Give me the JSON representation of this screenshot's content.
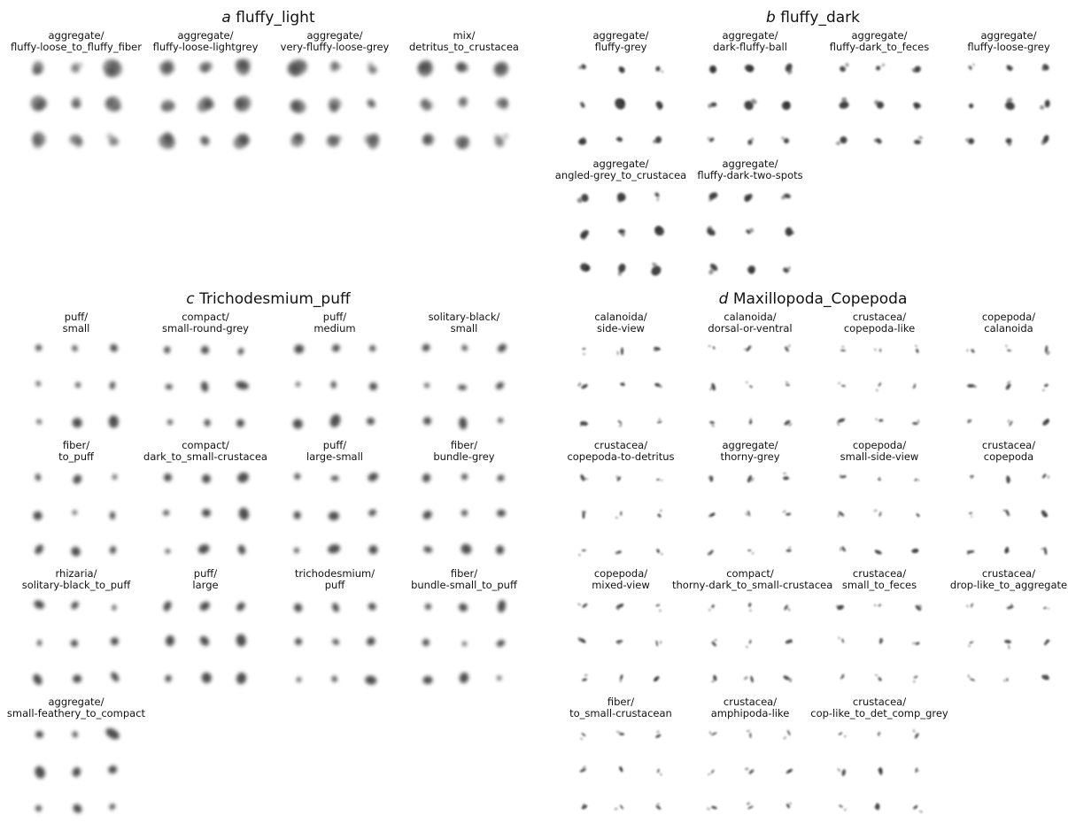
{
  "panels": [
    {
      "letter": "a",
      "name": "fluffy_light",
      "style": "fluffy_light",
      "cells": [
        {
          "group": "aggregate/",
          "type": "fluffy-loose_to_fluffy_fiber"
        },
        {
          "group": "aggregate/",
          "type": "fluffy-loose-lightgrey"
        },
        {
          "group": "aggregate/",
          "type": "very-fluffy-loose-grey"
        },
        {
          "group": "mix/",
          "type": "detritus_to_crustacea"
        }
      ]
    },
    {
      "letter": "b",
      "name": "fluffy_dark",
      "style": "fluffy_dark",
      "cells": [
        {
          "group": "aggregate/",
          "type": "fluffy-grey"
        },
        {
          "group": "aggregate/",
          "type": "dark-fluffy-ball"
        },
        {
          "group": "aggregate/",
          "type": "fluffy-dark_to_feces"
        },
        {
          "group": "aggregate/",
          "type": "fluffy-loose-grey"
        },
        {
          "group": "aggregate/",
          "type": "angled-grey_to_crustacea"
        },
        {
          "group": "aggregate/",
          "type": "fluffy-dark-two-spots"
        }
      ]
    },
    {
      "letter": "c",
      "name": "Trichodesmium_puff",
      "style": "puff",
      "cells": [
        {
          "group": "puff/",
          "type": "small"
        },
        {
          "group": "compact/",
          "type": "small-round-grey"
        },
        {
          "group": "puff/",
          "type": "medium"
        },
        {
          "group": "solitary-black/",
          "type": "small"
        },
        {
          "group": "fiber/",
          "type": "to_puff"
        },
        {
          "group": "compact/",
          "type": "dark_to_small-crustacea"
        },
        {
          "group": "puff/",
          "type": "large-small"
        },
        {
          "group": "fiber/",
          "type": "bundle-grey"
        },
        {
          "group": "rhizaria/",
          "type": "solitary-black_to_puff"
        },
        {
          "group": "puff/",
          "type": "large"
        },
        {
          "group": "trichodesmium/",
          "type": "puff"
        },
        {
          "group": "fiber/",
          "type": "bundle-small_to_puff"
        },
        {
          "group": "aggregate/",
          "type": "small-feathery_to_compact"
        }
      ]
    },
    {
      "letter": "d",
      "name": "Maxillopoda_Copepoda",
      "style": "copepoda",
      "cells": [
        {
          "group": "calanoida/",
          "type": "side-view"
        },
        {
          "group": "calanoida/",
          "type": "dorsal-or-ventral"
        },
        {
          "group": "crustacea/",
          "type": "copepoda-like"
        },
        {
          "group": "copepoda/",
          "type": "calanoida"
        },
        {
          "group": "crustacea/",
          "type": "copepoda-to-detritus"
        },
        {
          "group": "aggregate/",
          "type": "thorny-grey"
        },
        {
          "group": "copepoda/",
          "type": "small-side-view"
        },
        {
          "group": "crustacea/",
          "type": "copepoda"
        },
        {
          "group": "copepoda/",
          "type": "mixed-view"
        },
        {
          "group": "compact/",
          "type": "thorny-dark_to_small-crustacea"
        },
        {
          "group": "crustacea/",
          "type": "small_to_feces"
        },
        {
          "group": "crustacea/",
          "type": "drop-like_to_aggregate"
        },
        {
          "group": "fiber/",
          "type": "to_small-crustacean"
        },
        {
          "group": "crustacea/",
          "type": "amphipoda-like"
        },
        {
          "group": "crustacea/",
          "type": "cop-like_to_det_comp_grey"
        }
      ]
    }
  ]
}
